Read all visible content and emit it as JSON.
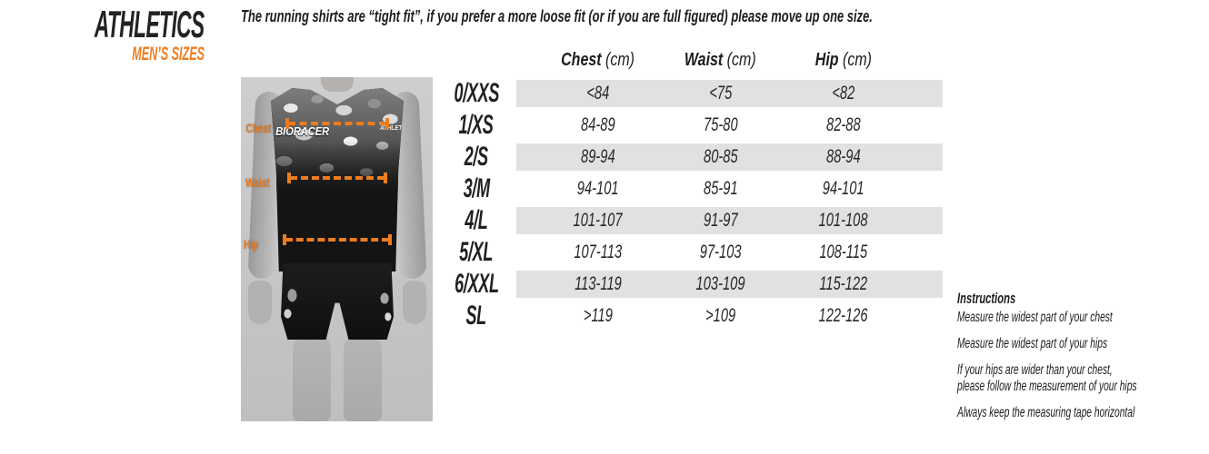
{
  "brand": {
    "title": "ATHLETICS",
    "subtitle": "MEN’S SIZES"
  },
  "note": "The running shirts are “tight fit”, if you prefer a more loose fit (or if you are full figured) please move up one size.",
  "figure": {
    "shirt_logo": {
      "line1": "BIORACER",
      "line2": "ATHLETICS"
    },
    "markers": [
      {
        "label": "Chest"
      },
      {
        "label": "Waist"
      },
      {
        "label": "Hip"
      }
    ]
  },
  "size_table": {
    "columns": [
      {
        "name": "Chest",
        "unit": "(cm)"
      },
      {
        "name": "Waist",
        "unit": "(cm)"
      },
      {
        "name": "Hip",
        "unit": "(cm)"
      }
    ],
    "rows": [
      {
        "size": "0/XXS",
        "chest": "<84",
        "waist": "<75",
        "hip": "<82"
      },
      {
        "size": "1/XS",
        "chest": "84-89",
        "waist": "75-80",
        "hip": "82-88"
      },
      {
        "size": "2/S",
        "chest": "89-94",
        "waist": "80-85",
        "hip": "88-94"
      },
      {
        "size": "3/M",
        "chest": "94-101",
        "waist": "85-91",
        "hip": "94-101"
      },
      {
        "size": "4/L",
        "chest": "101-107",
        "waist": "91-97",
        "hip": "101-108"
      },
      {
        "size": "5/XL",
        "chest": "107-113",
        "waist": "97-103",
        "hip": "108-115"
      },
      {
        "size": "6/XXL",
        "chest": "113-119",
        "waist": "103-109",
        "hip": "115-122"
      },
      {
        "size": "SL",
        "chest": ">119",
        "waist": ">109",
        "hip": "122-126"
      }
    ]
  },
  "instructions": {
    "title": "Instructions",
    "items": [
      "Measure the widest part of your chest",
      "Measure the widest part of your hips",
      "If your hips are wider than your chest,\nplease follow the measurement of your hips",
      "Always keep the measuring tape horizontal"
    ]
  },
  "colors": {
    "accent_orange": "#ef7c1e",
    "text": "#1f1c1d",
    "row_stripe": "#e1e1e1",
    "photo_background": "#c7c7c7"
  }
}
